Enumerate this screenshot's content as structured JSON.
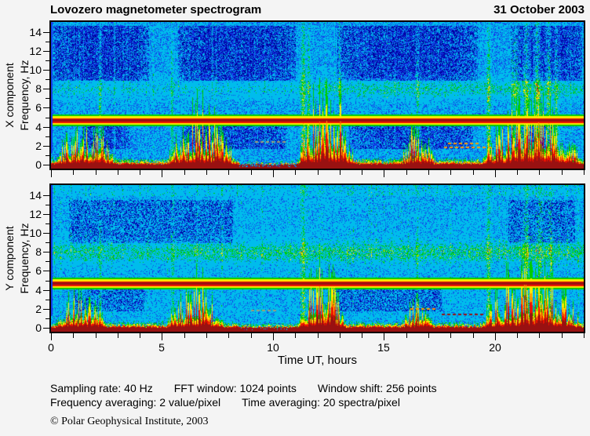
{
  "header": {
    "title": "Lovozero magnetometer spectrogram",
    "date": "31 October 2003"
  },
  "footer": {
    "params_line1": [
      "Sampling rate: 40 Hz",
      "FFT window: 1024 points",
      "Window shift: 256 points"
    ],
    "params_line2": [
      "Frequency averaging: 2 value/pixel",
      "Time averaging: 20 spectra/pixel"
    ],
    "copyright": "© Polar Geophysical Institute, 2003"
  },
  "chart_data": {
    "type": "heatmap",
    "subtype": "spectrogram",
    "title": "Lovozero magnetometer spectrogram",
    "date": "31 October 2003",
    "xlabel": "Time UT, hours",
    "x_axis": {
      "min": 0,
      "max": 24,
      "major_ticks": [
        0,
        5,
        10,
        15,
        20
      ],
      "minor_step": 1
    },
    "freq_axis": {
      "min": 0,
      "max": 15,
      "major_ticks": [
        14,
        12,
        10,
        8,
        6,
        4,
        2,
        0
      ],
      "minor_step": 1,
      "unit": "Hz"
    },
    "palette": {
      "darkblue": "#0000a0",
      "blue": "#143ceb",
      "cyan": "#00bcec",
      "green": "#00cc00",
      "yellow": "#ffec00",
      "orange": "#ff9900",
      "red": "#ee1100",
      "darkred": "#991111"
    },
    "thresholds": [
      0.105,
      0.2,
      0.47,
      0.635,
      0.76,
      0.835,
      0.925
    ],
    "panels": [
      {
        "id": "x",
        "component_label": "X component",
        "freq_label": "Frequency, Hz",
        "seed": 11,
        "base": 0.37,
        "speckle": 0.04,
        "top_green": 0,
        "streaks": {
          "density": 0.1,
          "amp": 0.12
        },
        "band8": {
          "center": 8.0,
          "width": 0.72,
          "amp": 0.2,
          "amp_late": 0.3,
          "late_after": 12
        },
        "line": {
          "freq": 4.7
        },
        "dark_top": {
          "fmin": 8.9,
          "fmax": 14.7,
          "density": 0.62,
          "strength": 0.27,
          "ranges": [
            [
              0.1,
              4.4
            ],
            [
              5.7,
              11.0
            ],
            [
              12.9,
              19.2
            ],
            [
              20.7,
              23.9
            ]
          ]
        },
        "dark_mid": {
          "fmin": 1.7,
          "fmax": 4.5,
          "density": 0.5,
          "strength": 0.22,
          "ranges": [
            [
              1.4,
              3.6
            ],
            [
              5.9,
              10.6
            ],
            [
              13.4,
              19.0
            ],
            [
              20.7,
              22.6
            ]
          ]
        },
        "calm": [
          [
            8.45,
            11.05,
            0.4
          ]
        ],
        "bottom_base": 0.55,
        "spikes": [
          [
            0.2,
            2.9,
            1.5
          ],
          [
            5.2,
            8.3,
            2.0
          ],
          [
            11.15,
            13.7,
            3.1
          ],
          [
            15.7,
            17.3,
            1.4
          ],
          [
            19.4,
            23.9,
            2.4
          ]
        ],
        "bursts": [
          [
            2.2,
            0.06,
            0.3
          ],
          [
            5.45,
            0.05,
            0.28
          ],
          [
            11.35,
            0.08,
            0.5
          ],
          [
            11.6,
            0.05,
            0.4
          ],
          [
            13.0,
            0.04,
            0.3
          ],
          [
            16.5,
            0.05,
            0.33
          ],
          [
            19.7,
            0.07,
            0.45
          ],
          [
            20.9,
            0.12,
            0.33
          ],
          [
            21.4,
            0.1,
            0.45
          ],
          [
            21.9,
            0.1,
            0.5
          ],
          [
            22.4,
            0.08,
            0.45
          ],
          [
            22.75,
            0.06,
            0.4
          ]
        ],
        "dashes": [
          {
            "t0": 9.2,
            "t1": 10.6,
            "f": 2.45,
            "color": "#9aa07a"
          },
          {
            "t0": 17.7,
            "t1": 19.9,
            "f": 1.9,
            "color": "#ff9900"
          },
          {
            "t0": 17.9,
            "t1": 19.3,
            "f": 2.35,
            "color": "#ff9900"
          }
        ]
      },
      {
        "id": "y",
        "component_label": "Y component",
        "freq_label": "Frequency, Hz",
        "seed": 23,
        "base": 0.4,
        "speckle": 0.07,
        "top_green": 0.13,
        "green_late": {
          "after": 11.5,
          "amp": 0.07
        },
        "streaks": {
          "density": 0.1,
          "amp": 0.12
        },
        "band8": {
          "center": 8.0,
          "width": 0.8,
          "amp": 0.3,
          "amp_late": 0.34,
          "late_after": 6
        },
        "line": {
          "freq": 4.7
        },
        "dark_top": {
          "fmin": 9.0,
          "fmax": 13.5,
          "density": 0.06,
          "strength": 0.3,
          "ranges": [
            [
              0.8,
              8.2
            ],
            [
              20.6,
              23.6
            ]
          ]
        },
        "dark_mid": {
          "fmin": 1.8,
          "fmax": 4.2,
          "density": 0.05,
          "strength": 0.3,
          "ranges": [
            [
              1.0,
              4.2
            ],
            [
              12.6,
              17.6
            ]
          ]
        },
        "calm": [
          [
            8.45,
            11.05,
            0.7
          ]
        ],
        "bottom_base": 0.5,
        "spikes": [
          [
            0.2,
            2.5,
            1.2
          ],
          [
            5.2,
            7.8,
            1.6
          ],
          [
            11.15,
            13.3,
            2.6
          ],
          [
            15.8,
            17.2,
            0.9
          ],
          [
            19.4,
            23.9,
            2.3
          ]
        ],
        "bursts": [
          [
            2.2,
            0.05,
            0.22
          ],
          [
            5.45,
            0.05,
            0.22
          ],
          [
            11.35,
            0.07,
            0.4
          ],
          [
            16.5,
            0.04,
            0.25
          ],
          [
            19.7,
            0.06,
            0.4
          ],
          [
            21.4,
            0.1,
            0.3
          ],
          [
            22.0,
            0.1,
            0.35
          ],
          [
            22.5,
            0.07,
            0.3
          ]
        ],
        "dashes": [
          {
            "t0": 9.0,
            "t1": 10.2,
            "f": 1.9,
            "color": "#9aa07a"
          },
          {
            "t0": 16.2,
            "t1": 17.3,
            "f": 2.1,
            "color": "#ff9900"
          },
          {
            "t0": 17.6,
            "t1": 19.4,
            "f": 1.45,
            "color": "#991111"
          }
        ]
      }
    ]
  }
}
